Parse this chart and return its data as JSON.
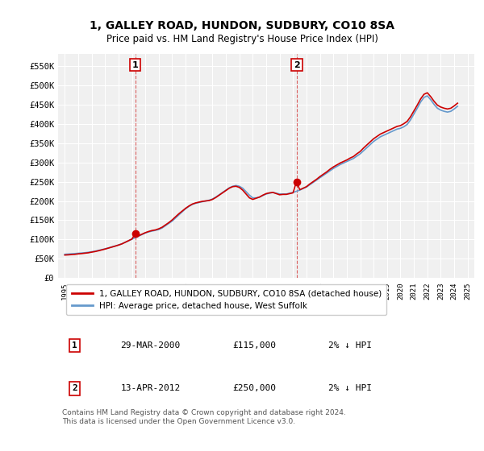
{
  "title": "1, GALLEY ROAD, HUNDON, SUDBURY, CO10 8SA",
  "subtitle": "Price paid vs. HM Land Registry's House Price Index (HPI)",
  "red_label": "1, GALLEY ROAD, HUNDON, SUDBURY, CO10 8SA (detached house)",
  "blue_label": "HPI: Average price, detached house, West Suffolk",
  "footnote": "Contains HM Land Registry data © Crown copyright and database right 2024.\nThis data is licensed under the Open Government Licence v3.0.",
  "sale1_label": "1",
  "sale1_date": "29-MAR-2000",
  "sale1_price": "£115,000",
  "sale1_hpi": "2% ↓ HPI",
  "sale1_year": 2000.25,
  "sale2_label": "2",
  "sale2_date": "13-APR-2012",
  "sale2_price": "£250,000",
  "sale2_hpi": "2% ↓ HPI",
  "sale2_year": 2012.29,
  "ylim": [
    0,
    580000
  ],
  "xlim_start": 1994.5,
  "xlim_end": 2025.5,
  "yticks": [
    0,
    50000,
    100000,
    150000,
    200000,
    250000,
    300000,
    350000,
    400000,
    450000,
    500000,
    550000
  ],
  "ytick_labels": [
    "£0",
    "£50K",
    "£100K",
    "£150K",
    "£200K",
    "£250K",
    "£300K",
    "£350K",
    "£400K",
    "£450K",
    "£500K",
    "£550K"
  ],
  "xticks": [
    1995,
    1996,
    1997,
    1998,
    1999,
    2000,
    2001,
    2002,
    2003,
    2004,
    2005,
    2006,
    2007,
    2008,
    2009,
    2010,
    2011,
    2012,
    2013,
    2014,
    2015,
    2016,
    2017,
    2018,
    2019,
    2020,
    2021,
    2022,
    2023,
    2024,
    2025
  ],
  "bg_color": "#f0f0f0",
  "grid_color": "#ffffff",
  "red_color": "#cc0000",
  "blue_color": "#6699cc",
  "sale_marker_color": "#cc0000",
  "hpi_years": [
    1995.0,
    1995.25,
    1995.5,
    1995.75,
    1996.0,
    1996.25,
    1996.5,
    1996.75,
    1997.0,
    1997.25,
    1997.5,
    1997.75,
    1998.0,
    1998.25,
    1998.5,
    1998.75,
    1999.0,
    1999.25,
    1999.5,
    1999.75,
    2000.0,
    2000.25,
    2000.5,
    2000.75,
    2001.0,
    2001.25,
    2001.5,
    2001.75,
    2002.0,
    2002.25,
    2002.5,
    2002.75,
    2003.0,
    2003.25,
    2003.5,
    2003.75,
    2004.0,
    2004.25,
    2004.5,
    2004.75,
    2005.0,
    2005.25,
    2005.5,
    2005.75,
    2006.0,
    2006.25,
    2006.5,
    2006.75,
    2007.0,
    2007.25,
    2007.5,
    2007.75,
    2008.0,
    2008.25,
    2008.5,
    2008.75,
    2009.0,
    2009.25,
    2009.5,
    2009.75,
    2010.0,
    2010.25,
    2010.5,
    2010.75,
    2011.0,
    2011.25,
    2011.5,
    2011.75,
    2012.0,
    2012.25,
    2012.5,
    2012.75,
    2013.0,
    2013.25,
    2013.5,
    2013.75,
    2014.0,
    2014.25,
    2014.5,
    2014.75,
    2015.0,
    2015.25,
    2015.5,
    2015.75,
    2016.0,
    2016.25,
    2016.5,
    2016.75,
    2017.0,
    2017.25,
    2017.5,
    2017.75,
    2018.0,
    2018.25,
    2018.5,
    2018.75,
    2019.0,
    2019.25,
    2019.5,
    2019.75,
    2020.0,
    2020.25,
    2020.5,
    2020.75,
    2021.0,
    2021.25,
    2021.5,
    2021.75,
    2022.0,
    2022.25,
    2022.5,
    2022.75,
    2023.0,
    2023.25,
    2023.5,
    2023.75,
    2024.0,
    2024.25
  ],
  "hpi_values": [
    62000,
    62500,
    63200,
    63800,
    64500,
    65200,
    66000,
    67000,
    68500,
    70000,
    72000,
    74000,
    76000,
    78500,
    81000,
    83500,
    86000,
    89000,
    93000,
    97000,
    101000,
    105000,
    109000,
    113000,
    117000,
    120000,
    122000,
    124000,
    126000,
    130000,
    136000,
    142000,
    148000,
    156000,
    164000,
    172000,
    180000,
    186000,
    191000,
    194000,
    196000,
    198000,
    200000,
    202000,
    205000,
    210000,
    216000,
    222000,
    228000,
    234000,
    238000,
    240000,
    238000,
    233000,
    224000,
    215000,
    208000,
    208000,
    210000,
    214000,
    218000,
    220000,
    222000,
    220000,
    218000,
    218000,
    218000,
    220000,
    222000,
    225000,
    228000,
    232000,
    236000,
    242000,
    248000,
    254000,
    260000,
    266000,
    272000,
    278000,
    284000,
    289000,
    294000,
    298000,
    302000,
    306000,
    310000,
    316000,
    322000,
    330000,
    338000,
    346000,
    354000,
    360000,
    366000,
    370000,
    374000,
    378000,
    382000,
    386000,
    388000,
    392000,
    398000,
    410000,
    425000,
    440000,
    456000,
    468000,
    472000,
    462000,
    450000,
    440000,
    435000,
    432000,
    430000,
    432000,
    438000,
    445000
  ],
  "red_years": [
    1995.0,
    1995.25,
    1995.5,
    1995.75,
    1996.0,
    1996.25,
    1996.5,
    1996.75,
    1997.0,
    1997.25,
    1997.5,
    1997.75,
    1998.0,
    1998.25,
    1998.5,
    1998.75,
    1999.0,
    1999.25,
    1999.5,
    1999.75,
    2000.0,
    2000.25,
    2000.5,
    2000.75,
    2001.0,
    2001.25,
    2001.5,
    2001.75,
    2002.0,
    2002.25,
    2002.5,
    2002.75,
    2003.0,
    2003.25,
    2003.5,
    2003.75,
    2004.0,
    2004.25,
    2004.5,
    2004.75,
    2005.0,
    2005.25,
    2005.5,
    2005.75,
    2006.0,
    2006.25,
    2006.5,
    2006.75,
    2007.0,
    2007.25,
    2007.5,
    2007.75,
    2008.0,
    2008.25,
    2008.5,
    2008.75,
    2009.0,
    2009.25,
    2009.5,
    2009.75,
    2010.0,
    2010.25,
    2010.5,
    2010.75,
    2011.0,
    2011.25,
    2011.5,
    2011.75,
    2012.0,
    2012.25,
    2012.5,
    2012.75,
    2013.0,
    2013.25,
    2013.5,
    2013.75,
    2014.0,
    2014.25,
    2014.5,
    2014.75,
    2015.0,
    2015.25,
    2015.5,
    2015.75,
    2016.0,
    2016.25,
    2016.5,
    2016.75,
    2017.0,
    2017.25,
    2017.5,
    2017.75,
    2018.0,
    2018.25,
    2018.5,
    2018.75,
    2019.0,
    2019.25,
    2019.5,
    2019.75,
    2020.0,
    2020.25,
    2020.5,
    2020.75,
    2021.0,
    2021.25,
    2021.5,
    2021.75,
    2022.0,
    2022.25,
    2022.5,
    2022.75,
    2023.0,
    2023.25,
    2023.5,
    2023.75,
    2024.0,
    2024.25
  ],
  "red_values": [
    60000,
    60500,
    61200,
    61800,
    63000,
    63800,
    64800,
    65800,
    67500,
    69000,
    71000,
    73200,
    75500,
    78000,
    80500,
    83000,
    85800,
    88800,
    93000,
    97200,
    101500,
    115000,
    110000,
    114000,
    118000,
    121000,
    123500,
    125000,
    128000,
    132000,
    138000,
    144000,
    151000,
    159000,
    167000,
    174000,
    181000,
    187000,
    192000,
    195000,
    197000,
    199000,
    200000,
    201000,
    204000,
    209000,
    215000,
    221000,
    227000,
    233000,
    237000,
    238000,
    235000,
    228000,
    218000,
    208000,
    204000,
    207000,
    210000,
    215000,
    219000,
    221000,
    222000,
    219000,
    216000,
    217000,
    217000,
    219000,
    221000,
    250000,
    229000,
    233000,
    237000,
    244000,
    250000,
    256000,
    263000,
    269000,
    275000,
    282000,
    288000,
    293000,
    298000,
    302000,
    306000,
    311000,
    315000,
    322000,
    328000,
    337000,
    345000,
    353000,
    361000,
    367000,
    373000,
    377000,
    381000,
    385000,
    389000,
    393000,
    395000,
    400000,
    406000,
    418000,
    433000,
    448000,
    464000,
    476000,
    480000,
    470000,
    458000,
    448000,
    443000,
    440000,
    438000,
    440000,
    446000,
    453000
  ]
}
